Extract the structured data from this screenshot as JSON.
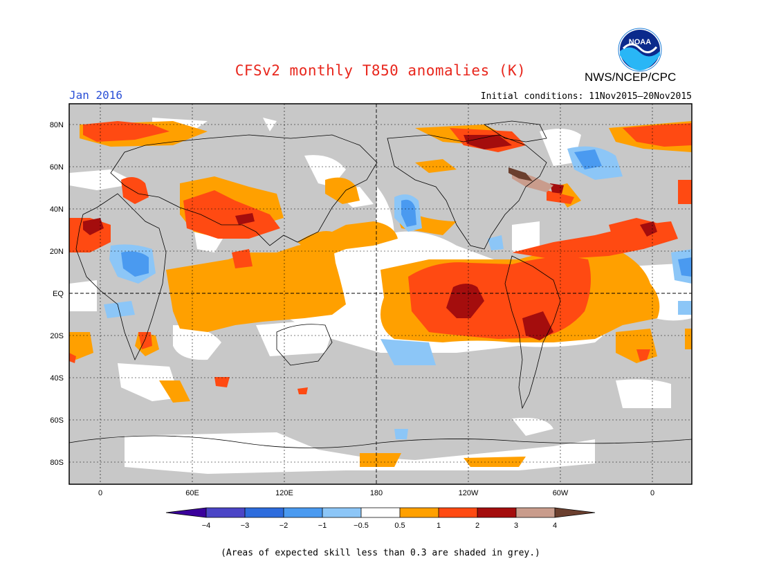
{
  "title": "CFSv2 monthly T850 anomalies (K)",
  "target_month": "Jan 2016",
  "initial_conditions": "Initial conditions: 11Nov2015—20Nov2015",
  "agency": "NWS/NCEP/CPC",
  "logo_text": "NOAA",
  "footnote": "(Areas of expected skill less than 0.3 are shaded in grey.)",
  "map": {
    "lon_labels": [
      "0",
      "60E",
      "120E",
      "180",
      "120W",
      "60W",
      "0"
    ],
    "lat_labels": [
      "80N",
      "60N",
      "40N",
      "20N",
      "EQ",
      "20S",
      "40S",
      "60S",
      "80S"
    ],
    "background_skill_color": "#c8c8c8",
    "ocean_neutral_color": "#ffffff"
  },
  "colorbar": {
    "labels": [
      "−4",
      "−3",
      "−2",
      "−1",
      "−0.5",
      "0.5",
      "1",
      "2",
      "3",
      "4"
    ],
    "colors": [
      "#3a009b",
      "#4b45c6",
      "#2d6cdd",
      "#4a9af0",
      "#8cc6f7",
      "#ffffff",
      "#ffa000",
      "#ff4a12",
      "#a40d0d",
      "#c99c8c",
      "#6b3f2e"
    ]
  }
}
